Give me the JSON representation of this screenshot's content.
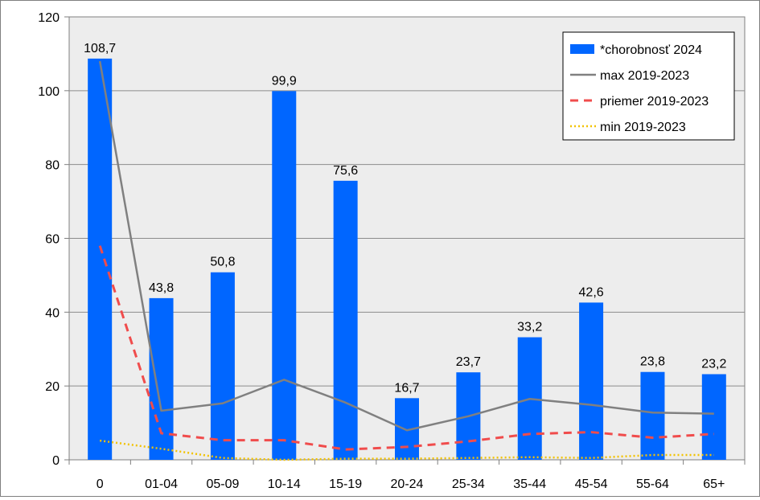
{
  "chart_data": {
    "type": "bar",
    "categories": [
      "0",
      "01-04",
      "05-09",
      "10-14",
      "15-19",
      "20-24",
      "25-34",
      "35-44",
      "45-54",
      "55-64",
      "65+"
    ],
    "ylim": [
      0,
      120
    ],
    "yticks": [
      "0",
      "20",
      "40",
      "60",
      "80",
      "100",
      "120"
    ],
    "grid": true,
    "legend_position": "top-right",
    "series": [
      {
        "name": "*chorobnosť 2024",
        "kind": "bar",
        "color": "#0066ff",
        "values": [
          108.7,
          43.8,
          50.8,
          99.9,
          75.6,
          16.7,
          23.7,
          33.2,
          42.6,
          23.8,
          23.2
        ],
        "labels": [
          "108,7",
          "43,8",
          "50,8",
          "99,9",
          "75,6",
          "16,7",
          "23,7",
          "33,2",
          "42,6",
          "23,8",
          "23,2"
        ]
      },
      {
        "name": "max 2019-2023",
        "kind": "line",
        "style": "solid",
        "color": "#808080",
        "values": [
          108,
          13.3,
          15.3,
          21.7,
          15.5,
          8,
          11.8,
          16.5,
          14.9,
          12.8,
          12.5
        ]
      },
      {
        "name": "priemer 2019-2023",
        "kind": "line",
        "style": "dashed",
        "color": "#f04c4c",
        "values": [
          58,
          7.2,
          5.3,
          5.3,
          2.8,
          3.5,
          5,
          7,
          7.5,
          6,
          7
        ]
      },
      {
        "name": "min 2019-2023",
        "kind": "line",
        "style": "dotted",
        "color": "#f2c200",
        "values": [
          5.2,
          3,
          0.5,
          0,
          0.3,
          0.3,
          0.5,
          0.7,
          0.5,
          1.3,
          1.3
        ]
      }
    ]
  }
}
